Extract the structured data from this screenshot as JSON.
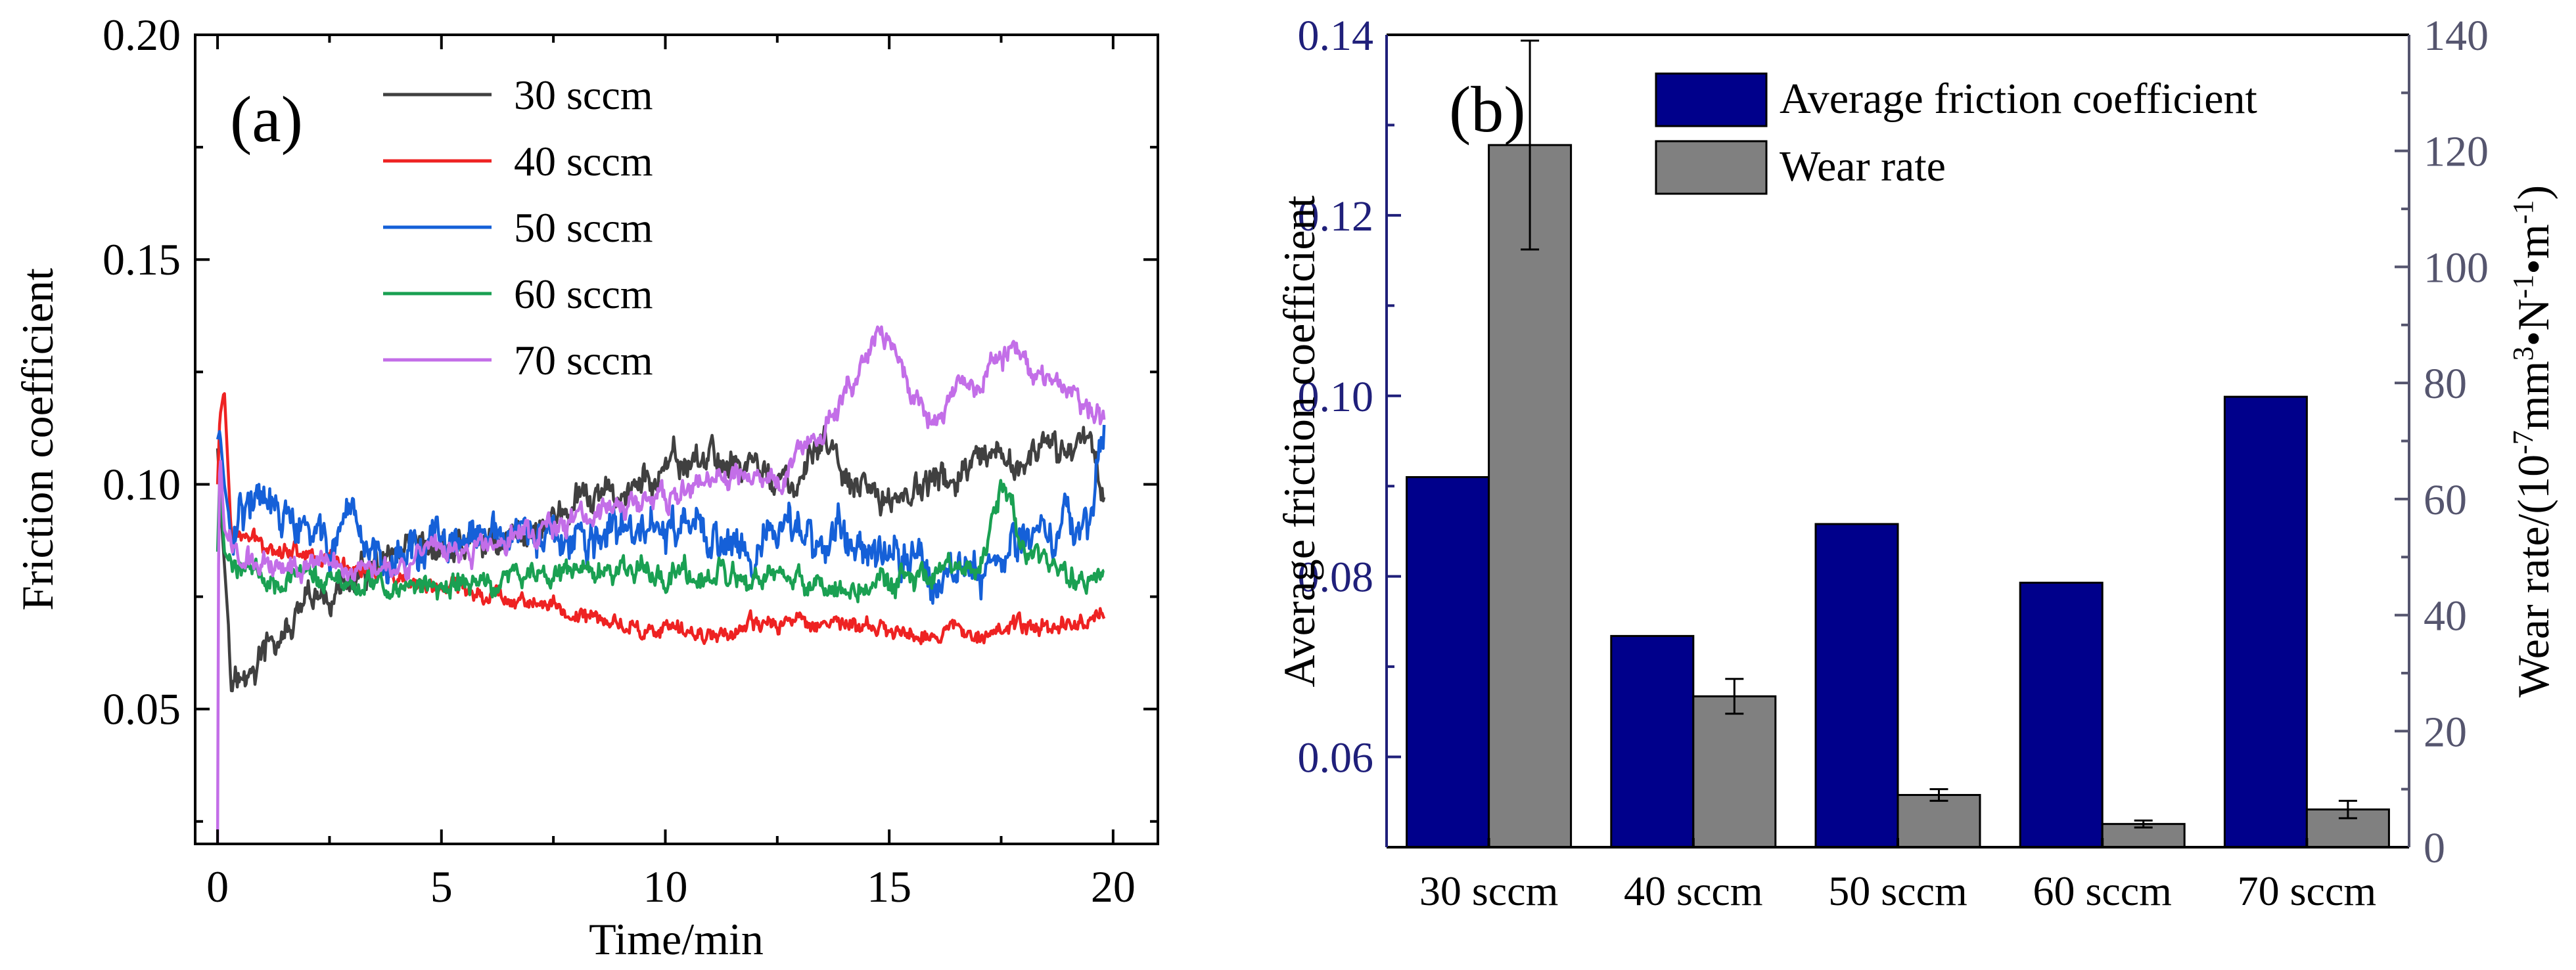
{
  "colors": {
    "axis": "#000000",
    "axis_left_b": "#1f1f7a",
    "axis_right_b": "#55556e",
    "bar_friction": "#00008b",
    "bar_wear": "#808080"
  },
  "chart_data": [
    {
      "type": "line",
      "panel_label": "(a)",
      "xlabel": "Time/min",
      "ylabel": "Friction coefficient",
      "xlim": [
        -0.5,
        21
      ],
      "ylim": [
        0.02,
        0.2
      ],
      "xticks": [
        0,
        5,
        10,
        15,
        20
      ],
      "xtick_labels": [
        "0",
        "5",
        "10",
        "15",
        "20"
      ],
      "yticks": [
        0.05,
        0.1,
        0.15,
        0.2
      ],
      "ytick_labels": [
        "0.05",
        "0.10",
        "0.15",
        "0.20"
      ],
      "legend_position": "top-left",
      "series": [
        {
          "name": "30 sccm",
          "color": "#404040",
          "x": [
            0,
            0.1,
            0.3,
            0.6,
            1,
            1.5,
            2,
            3,
            4,
            5,
            6,
            7,
            8,
            9,
            10,
            10.5,
            11,
            12,
            12.5,
            13,
            13.5,
            14,
            14.5,
            15,
            16,
            17,
            18,
            19,
            19.5,
            19.8
          ],
          "y": [
            0.108,
            0.09,
            0.06,
            0.055,
            0.062,
            0.066,
            0.072,
            0.078,
            0.082,
            0.085,
            0.087,
            0.09,
            0.095,
            0.098,
            0.102,
            0.105,
            0.106,
            0.104,
            0.101,
            0.098,
            0.112,
            0.1,
            0.097,
            0.097,
            0.1,
            0.103,
            0.105,
            0.108,
            0.112,
            0.098
          ]
        },
        {
          "name": "40 sccm",
          "color": "#ee2222",
          "x": [
            0,
            0.05,
            0.15,
            0.3,
            0.6,
            1,
            2,
            3,
            4,
            5,
            6,
            7,
            8,
            9,
            10,
            11,
            12,
            13,
            14,
            15,
            16,
            17,
            18,
            19,
            19.8
          ],
          "y": [
            0.1,
            0.115,
            0.121,
            0.09,
            0.088,
            0.087,
            0.085,
            0.082,
            0.078,
            0.077,
            0.076,
            0.074,
            0.071,
            0.069,
            0.067,
            0.067,
            0.068,
            0.07,
            0.069,
            0.067,
            0.067,
            0.068,
            0.068,
            0.069,
            0.071
          ]
        },
        {
          "name": "50 sccm",
          "color": "#1560d8",
          "x": [
            0,
            0.05,
            0.15,
            0.3,
            0.5,
            1,
            2,
            3,
            4,
            5,
            6,
            7,
            8,
            9,
            10,
            11,
            12,
            13,
            14,
            15,
            16,
            17,
            18,
            19,
            19.5,
            19.8
          ],
          "y": [
            0.11,
            0.112,
            0.1,
            0.09,
            0.097,
            0.095,
            0.088,
            0.086,
            0.085,
            0.086,
            0.087,
            0.088,
            0.086,
            0.089,
            0.09,
            0.088,
            0.087,
            0.089,
            0.088,
            0.087,
            0.08,
            0.082,
            0.088,
            0.09,
            0.095,
            0.11
          ]
        },
        {
          "name": "60 sccm",
          "color": "#1aa052",
          "x": [
            0,
            0.05,
            0.15,
            0.3,
            0.6,
            1,
            2,
            3,
            4,
            5,
            6,
            7,
            8,
            9,
            10,
            11,
            12,
            13,
            14,
            15,
            16,
            17,
            17.5,
            18,
            19,
            19.8
          ],
          "y": [
            0.085,
            0.103,
            0.085,
            0.082,
            0.083,
            0.08,
            0.079,
            0.078,
            0.077,
            0.077,
            0.078,
            0.08,
            0.081,
            0.08,
            0.081,
            0.079,
            0.078,
            0.078,
            0.077,
            0.078,
            0.079,
            0.08,
            0.1,
            0.085,
            0.08,
            0.079
          ]
        },
        {
          "name": "70 sccm",
          "color": "#c36ee8",
          "x": [
            0,
            0.02,
            0.05,
            0.15,
            0.3,
            0.6,
            1,
            2,
            3,
            4,
            5,
            6,
            7,
            8,
            9,
            10,
            11,
            12,
            12.5,
            13,
            13.5,
            14,
            14.5,
            14.8,
            15.2,
            15.6,
            16,
            16.5,
            17,
            17.5,
            17.8,
            18.2,
            18.6,
            19,
            19.5,
            19.8
          ],
          "y": [
            0.02,
            0.08,
            0.108,
            0.09,
            0.086,
            0.083,
            0.082,
            0.083,
            0.082,
            0.083,
            0.084,
            0.086,
            0.09,
            0.092,
            0.095,
            0.097,
            0.1,
            0.102,
            0.1,
            0.108,
            0.112,
            0.12,
            0.127,
            0.133,
            0.128,
            0.118,
            0.114,
            0.12,
            0.122,
            0.128,
            0.134,
            0.126,
            0.122,
            0.12,
            0.116,
            0.114
          ]
        }
      ]
    },
    {
      "type": "bar",
      "panel_label": "(b)",
      "categories": [
        "30 sccm",
        "40 sccm",
        "50 sccm",
        "60 sccm",
        "70 sccm"
      ],
      "ylabel": "Average friction coefficient",
      "ylabel_right": "Wear rate/(10",
      "ylabel_right_parts": [
        "Wear rate/(10",
        "-7",
        "mm",
        "3",
        "•N",
        "-1",
        "•m",
        "-1",
        ")"
      ],
      "ylim": [
        0.05,
        0.14
      ],
      "yticks": [
        0.06,
        0.08,
        0.1,
        0.12,
        0.14
      ],
      "ytick_labels": [
        "0.06",
        "0.08",
        "0.10",
        "0.12",
        "0.14"
      ],
      "ylim_right": [
        0,
        140
      ],
      "yticks_right": [
        0,
        20,
        40,
        60,
        80,
        100,
        120,
        140
      ],
      "ytick_labels_right": [
        "0",
        "20",
        "40",
        "60",
        "80",
        "100",
        "120",
        "140"
      ],
      "legend_position": "top-right",
      "series": [
        {
          "name": "Average friction coefficient",
          "axis": "left",
          "color": "#00008b",
          "values": [
            0.091,
            0.0734,
            0.0858,
            0.0793,
            0.0999
          ]
        },
        {
          "name": "Wear rate",
          "axis": "right",
          "color": "#808080",
          "values": [
            121,
            26,
            9,
            4,
            6.5
          ],
          "errors": [
            18,
            3,
            1,
            0.6,
            1.5
          ]
        }
      ]
    }
  ]
}
